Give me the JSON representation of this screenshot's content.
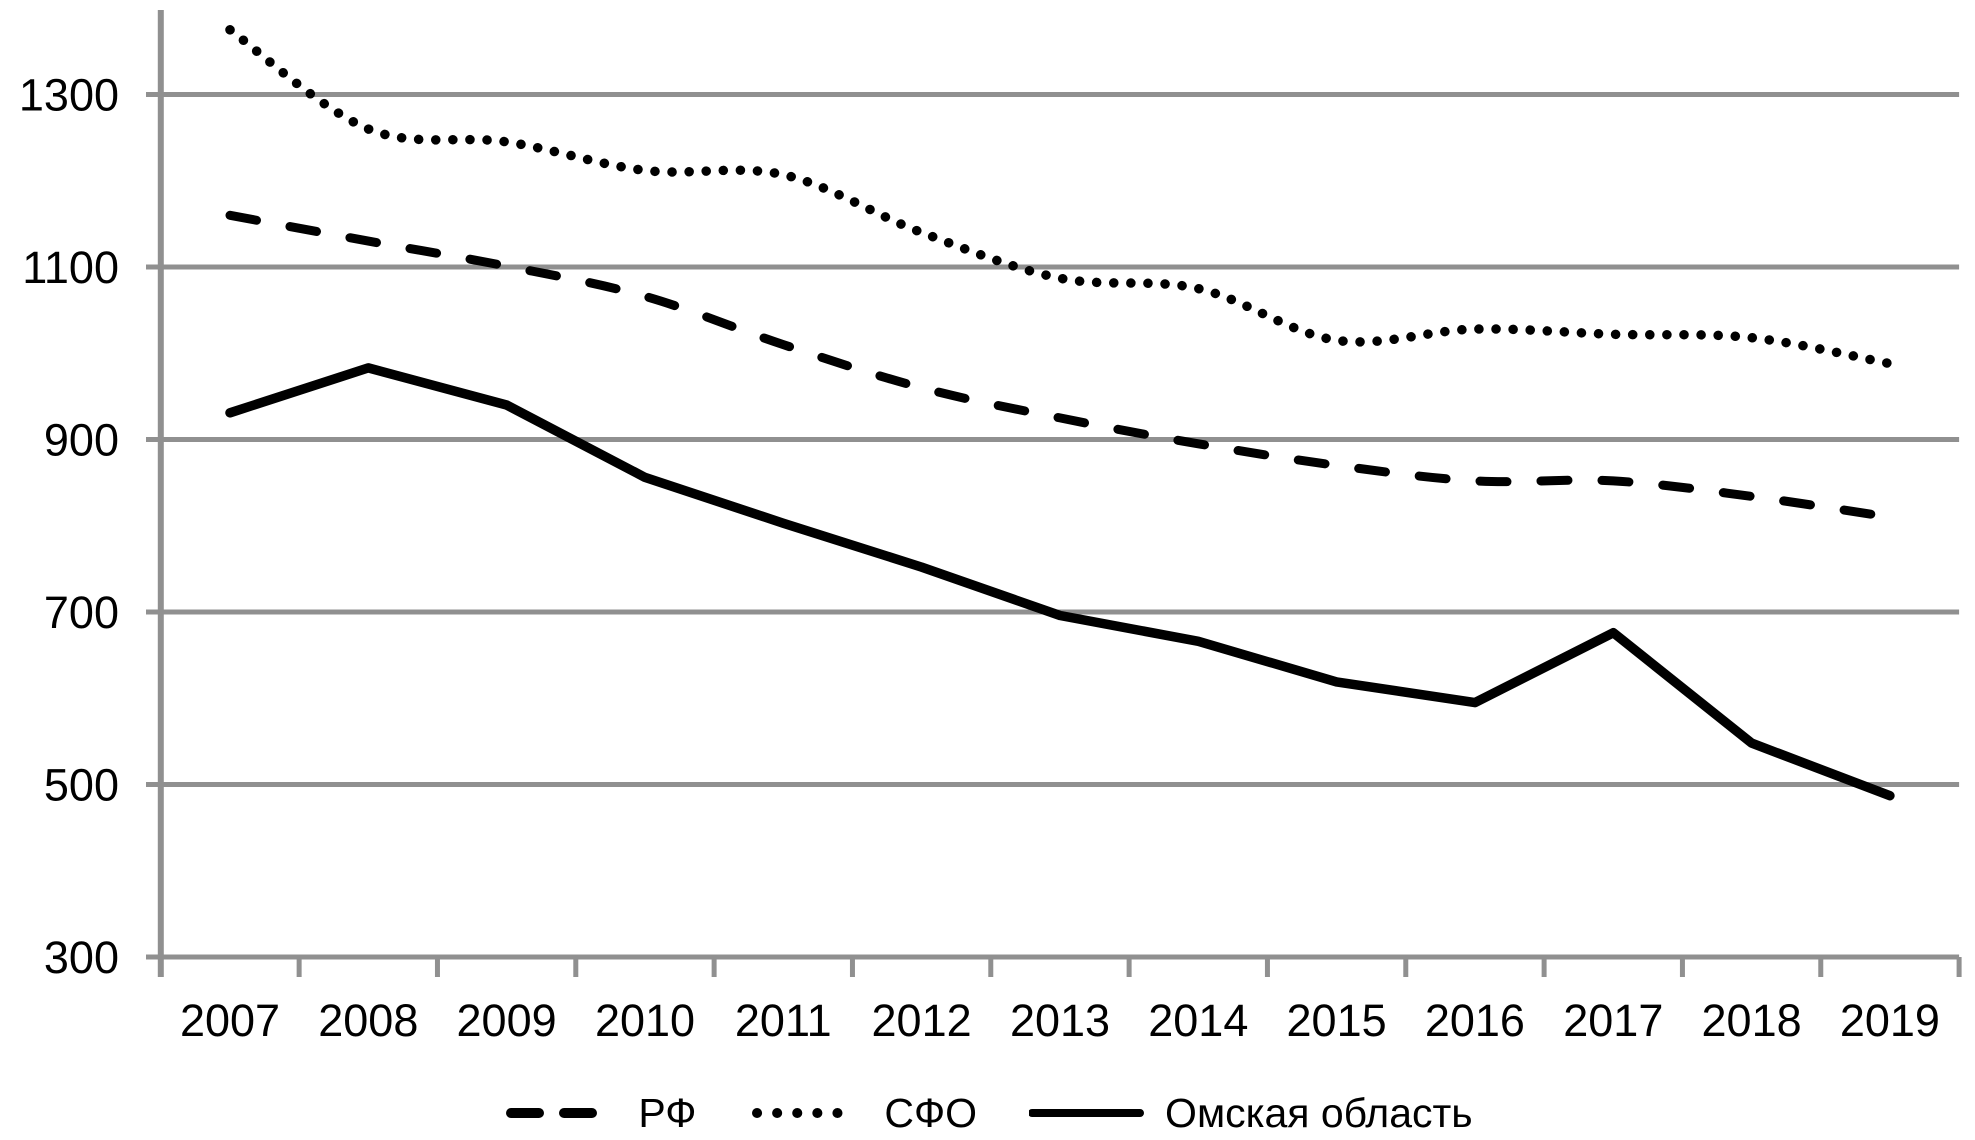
{
  "chart_data": {
    "type": "line",
    "title": "",
    "categories": [
      "2007",
      "2008",
      "2009",
      "2010",
      "2011",
      "2012",
      "2013",
      "2014",
      "2015",
      "2016",
      "2017",
      "2018",
      "2019"
    ],
    "series": [
      {
        "name": "РФ",
        "style": "dashed",
        "values": [
          1160,
          1130,
          1101,
          1066,
          1010,
          960,
          925,
          895,
          870,
          852,
          852,
          834,
          810
        ]
      },
      {
        "name": "СФО",
        "style": "dotted",
        "values": [
          1375,
          1260,
          1245,
          1212,
          1207,
          1140,
          1087,
          1075,
          1015,
          1028,
          1022,
          1018,
          988
        ]
      },
      {
        "name": "Омская область",
        "style": "solid",
        "values": [
          931,
          983,
          940,
          856,
          803,
          752,
          696,
          666,
          619,
          595,
          676,
          548,
          487
        ]
      }
    ],
    "xlabel": "",
    "ylabel": "",
    "ylim": [
      300,
      1385
    ],
    "yticks": [
      300,
      500,
      700,
      900,
      1100,
      1300
    ],
    "grid": "horizontal",
    "legend_position": "bottom",
    "colors": {
      "series": "#000000",
      "grid": "#909090",
      "axis": "#909090",
      "text": "#000000",
      "background": "#ffffff"
    }
  }
}
